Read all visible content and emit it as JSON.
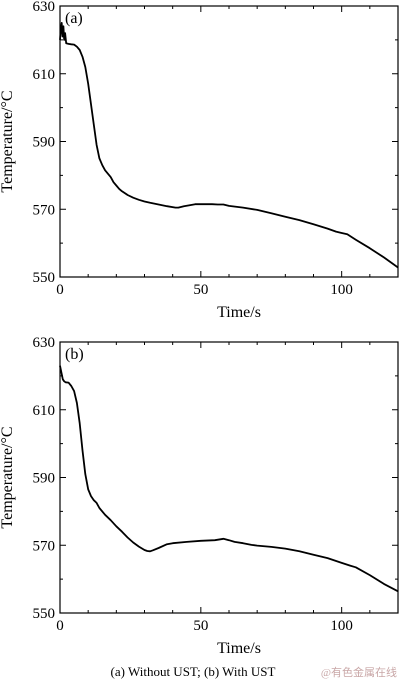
{
  "chart_data": [
    {
      "type": "line",
      "panel_label": "(a)",
      "xlabel": "Time/s",
      "ylabel": "Temperature/°C",
      "xlim": [
        0,
        120
      ],
      "ylim": [
        550,
        630
      ],
      "xticks": [
        0,
        50,
        100
      ],
      "yticks": [
        550,
        570,
        590,
        610,
        630
      ],
      "grid": false,
      "series": [
        {
          "x": [
            0,
            0.3,
            0.6,
            0.9,
            1.2,
            1.5,
            1.8,
            2.2,
            3,
            4,
            5,
            6,
            7,
            8,
            9,
            10,
            11,
            12,
            13,
            14,
            15,
            16,
            17,
            18,
            19,
            20,
            21,
            22,
            24,
            26,
            28,
            30,
            32,
            35,
            38,
            41,
            42,
            44,
            46,
            48,
            50,
            52,
            54,
            56,
            58,
            60,
            65,
            70,
            75,
            80,
            85,
            90,
            95,
            98,
            100,
            102,
            105,
            110,
            115,
            120
          ],
          "y": [
            620,
            623,
            625,
            621,
            624,
            620,
            622,
            619,
            618.8,
            618.7,
            618.6,
            618,
            617,
            615,
            612,
            607,
            601,
            595,
            589,
            585,
            583,
            581.5,
            580.5,
            579.5,
            578,
            577,
            576,
            575.3,
            574.2,
            573.4,
            572.8,
            572.3,
            571.9,
            571.4,
            570.9,
            570.5,
            570.5,
            570.9,
            571.2,
            571.5,
            571.5,
            571.5,
            571.5,
            571.4,
            571.4,
            571,
            570.5,
            569.8,
            568.8,
            567.8,
            566.8,
            565.6,
            564.3,
            563.4,
            563,
            562.6,
            561,
            558.5,
            555.8,
            552.8
          ]
        }
      ]
    },
    {
      "type": "line",
      "panel_label": "(b)",
      "xlabel": "Time/s",
      "ylabel": "Temperature/°C",
      "xlim": [
        0,
        120
      ],
      "ylim": [
        550,
        630
      ],
      "xticks": [
        0,
        50,
        100
      ],
      "yticks": [
        550,
        570,
        590,
        610,
        630
      ],
      "grid": false,
      "series": [
        {
          "x": [
            0,
            0.5,
            1,
            1.5,
            2,
            3,
            4,
            5,
            6,
            7,
            8,
            9,
            10,
            11,
            12,
            13,
            14,
            16,
            18,
            20,
            22,
            24,
            26,
            28,
            30,
            31,
            32,
            33,
            35,
            38,
            40,
            45,
            50,
            55,
            58,
            60,
            62,
            65,
            68,
            70,
            75,
            80,
            85,
            90,
            95,
            100,
            103,
            105,
            110,
            115,
            120
          ],
          "y": [
            623,
            621,
            619,
            618.4,
            618.1,
            618,
            617,
            615.5,
            612,
            606,
            598,
            591,
            586.5,
            584.5,
            583.3,
            582.5,
            581,
            579,
            577.4,
            575.6,
            574,
            572.3,
            570.8,
            569.6,
            568.6,
            568.3,
            568.2,
            568.5,
            569.2,
            570.3,
            570.6,
            571,
            571.3,
            571.5,
            571.9,
            571.5,
            571,
            570.6,
            570.1,
            569.9,
            569.5,
            569,
            568.2,
            567.2,
            566.2,
            564.8,
            564,
            563.5,
            561.2,
            558.6,
            556.4
          ]
        }
      ]
    }
  ],
  "caption": "(a) Without UST; (b) With UST",
  "watermark": "@有色金属在线"
}
